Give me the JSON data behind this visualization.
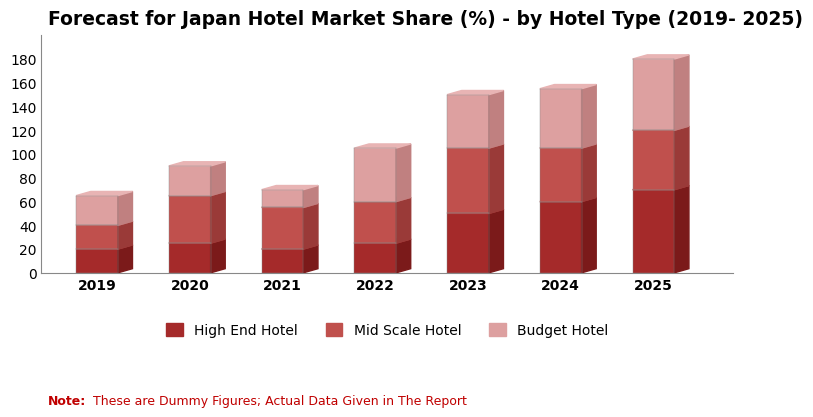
{
  "title": "Forecast for Japan Hotel Market Share (%) - by Hotel Type (2019- 2025)",
  "years": [
    "2019",
    "2020",
    "2021",
    "2022",
    "2023",
    "2024",
    "2025"
  ],
  "high_end": [
    20,
    25,
    20,
    25,
    50,
    60,
    70
  ],
  "mid_scale": [
    20,
    40,
    35,
    35,
    55,
    45,
    50
  ],
  "budget": [
    25,
    25,
    15,
    45,
    45,
    50,
    60
  ],
  "color_high_end": "#A52A2A",
  "color_high_end_dark": "#7B1A1A",
  "color_high_end_top": "#B84040",
  "color_mid_scale": "#C0504D",
  "color_mid_scale_dark": "#9A3A38",
  "color_mid_scale_top": "#CC6663",
  "color_budget": "#DDA0A0",
  "color_budget_dark": "#C08080",
  "color_budget_top": "#E8B4B4",
  "ylim": [
    0,
    200
  ],
  "yticks": [
    0,
    20,
    40,
    60,
    80,
    100,
    120,
    140,
    160,
    180
  ],
  "legend_labels": [
    "High End Hotel",
    "Mid Scale Hotel",
    "Budget Hotel"
  ],
  "note_bold": "Note:",
  "note_text": "These are Dummy Figures; Actual Data Given in The Report",
  "note_color": "#C00000",
  "title_fontsize": 13.5,
  "axis_fontsize": 10,
  "legend_fontsize": 10,
  "note_fontsize": 9,
  "bar_width": 0.45,
  "depth": 0.12,
  "bg_color": "#FFFFFF",
  "plot_bg": "#F5F5F5"
}
